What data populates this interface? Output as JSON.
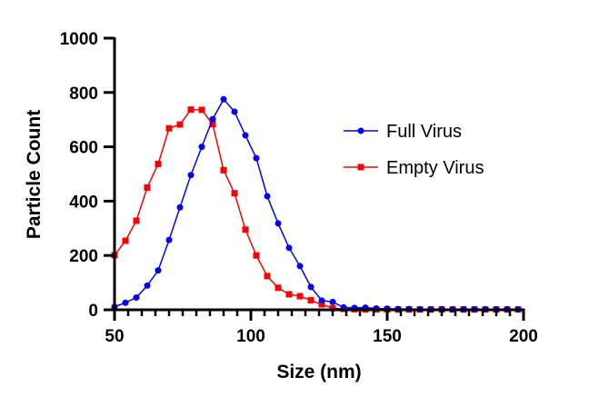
{
  "chart_data": {
    "type": "line",
    "title": "",
    "xlabel": "Size (nm)",
    "ylabel": "Particle Count",
    "xlim": [
      50,
      200
    ],
    "ylim": [
      0,
      1000
    ],
    "xticks": [
      50,
      100,
      150,
      200
    ],
    "yticks": [
      0,
      200,
      400,
      600,
      800,
      1000
    ],
    "grid": false,
    "legend_position": "right",
    "x": [
      50,
      54,
      58,
      62,
      66,
      70,
      74,
      78,
      82,
      86,
      90,
      94,
      98,
      102,
      106,
      110,
      114,
      118,
      122,
      126,
      130,
      134,
      138,
      142,
      146,
      150,
      154,
      158,
      162,
      166,
      170,
      174,
      178,
      182,
      186,
      190,
      194,
      198
    ],
    "series": [
      {
        "name": "Full Virus",
        "color": "#0000ff",
        "marker": "circle",
        "values": [
          11,
          26,
          45,
          89,
          145,
          257,
          377,
          496,
          600,
          702,
          775,
          729,
          642,
          558,
          418,
          318,
          228,
          161,
          84,
          34,
          29,
          9,
          7,
          8,
          5,
          4,
          3,
          3,
          2,
          2,
          2,
          2,
          2,
          2,
          2,
          2,
          2,
          2
        ]
      },
      {
        "name": "Empty Virus",
        "color": "#ff0000",
        "marker": "square",
        "values": [
          201,
          254,
          328,
          450,
          537,
          668,
          682,
          737,
          736,
          683,
          514,
          429,
          295,
          200,
          124,
          81,
          57,
          50,
          35,
          20,
          6,
          3,
          2,
          1,
          1,
          1,
          1,
          1,
          1,
          1,
          1,
          1,
          1,
          1,
          1,
          1,
          1,
          1
        ]
      }
    ]
  }
}
